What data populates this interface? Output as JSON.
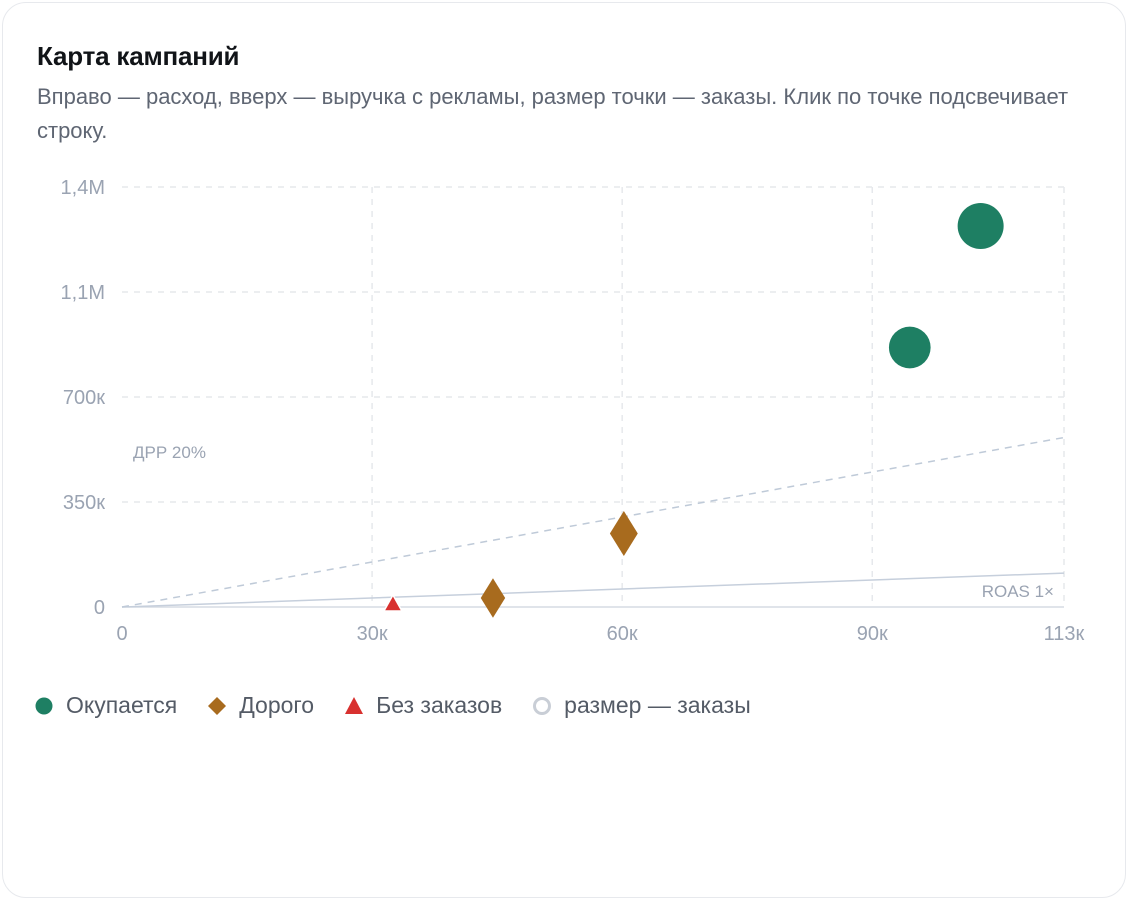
{
  "card": {
    "title": "Карта кампаний",
    "subtitle": "Вправо — расход, вверх — выручка с рекламы, размер точки — заказы. Клик по точке подсвечивает строку."
  },
  "colors": {
    "ok": "#1e7f63",
    "expensive": "#a86b1e",
    "no_orders": "#d8312f",
    "size_hint": "#c9ced6",
    "grid": "#e6e8ec",
    "axis_text": "#9aa3b2",
    "line_roas": "#c6cfdc",
    "line_drr": "#bfcad8"
  },
  "chart_data": {
    "type": "scatter",
    "x_ticks": [
      {
        "value": 0,
        "label": "0"
      },
      {
        "value": 30000,
        "label": "30к"
      },
      {
        "value": 60000,
        "label": "60к"
      },
      {
        "value": 90000,
        "label": "90к"
      },
      {
        "value": 113000,
        "label": "113к"
      }
    ],
    "y_ticks": [
      {
        "value": 0,
        "label": "0"
      },
      {
        "value": 350000,
        "label": "350к"
      },
      {
        "value": 700000,
        "label": "700к"
      },
      {
        "value": 1050000,
        "label": "1,1М"
      },
      {
        "value": 1400000,
        "label": "1,4М"
      }
    ],
    "xlim": [
      0,
      113000
    ],
    "ylim": [
      0,
      1400000
    ],
    "grid": true,
    "reference_lines": [
      {
        "label": "ROAS 1×",
        "slope": 1,
        "style": "solid"
      },
      {
        "label": "ДРР 20%",
        "slope": 5,
        "style": "dashed"
      }
    ],
    "series": [
      {
        "name": "Окупается",
        "marker": "circle",
        "color": "#1e7f63",
        "points": [
          {
            "x": 103000,
            "y": 1270000,
            "orders_level": 1.0
          },
          {
            "x": 94500,
            "y": 865000,
            "orders_level": 0.82
          }
        ]
      },
      {
        "name": "Дорого",
        "marker": "diamond",
        "color": "#a86b1e",
        "points": [
          {
            "x": 60200,
            "y": 245000,
            "orders_level": 0.75
          },
          {
            "x": 44500,
            "y": 30000,
            "orders_level": 0.55
          }
        ]
      },
      {
        "name": "Без заказов",
        "marker": "triangle",
        "color": "#d8312f",
        "points": [
          {
            "x": 32500,
            "y": 0,
            "orders_level": 0
          }
        ]
      }
    ]
  },
  "legend": {
    "ok": "Окупается",
    "expensive": "Дорого",
    "no_orders": "Без заказов",
    "size_hint": "размер — заказы"
  }
}
